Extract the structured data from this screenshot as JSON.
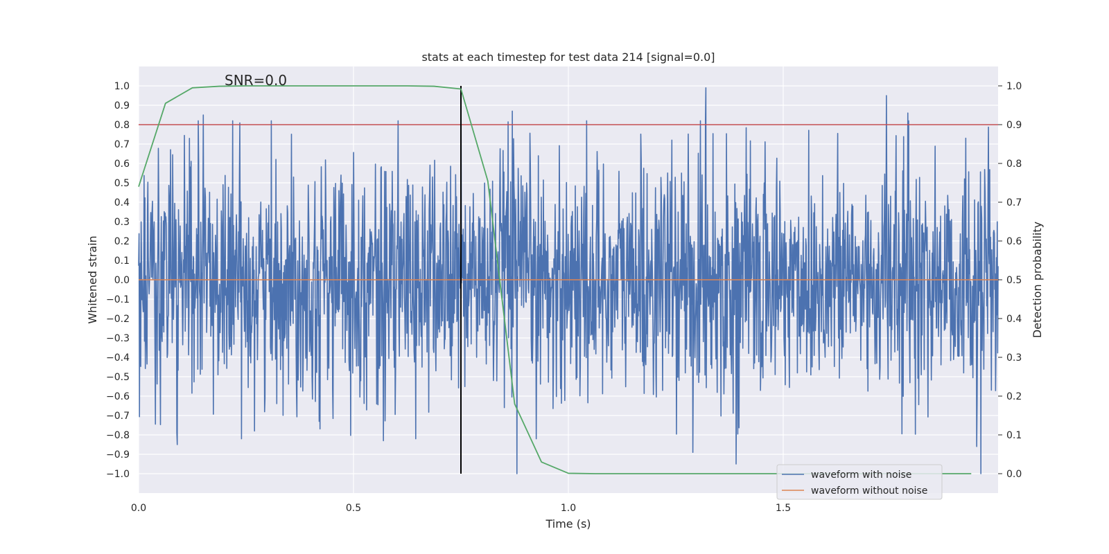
{
  "chart_data": {
    "type": "line",
    "title": "stats at each timestep for test data 214 [signal=0.0]",
    "xlabel": "Time (s)",
    "ylabel": "Whitened strain",
    "y2label": "Detection probability",
    "annotation": "SNR=0.0",
    "xlim": [
      0.0,
      2.0
    ],
    "ylim": [
      -1.1,
      1.1
    ],
    "y2lim": [
      -0.05,
      1.05
    ],
    "x_ticks": [
      "0.0",
      "0.5",
      "1.0",
      "1.5"
    ],
    "x_tick_values": [
      0.0,
      0.5,
      1.0,
      1.5
    ],
    "y_ticks": [
      "1.0",
      "0.9",
      "0.8",
      "0.7",
      "0.6",
      "0.5",
      "0.4",
      "0.3",
      "0.2",
      "0.1",
      "0.0",
      "−0.1",
      "−0.2",
      "−0.3",
      "−0.4",
      "−0.5",
      "−0.6",
      "−0.7",
      "−0.8",
      "−0.9",
      "−1.0"
    ],
    "y_tick_values": [
      1.0,
      0.9,
      0.8,
      0.7,
      0.6,
      0.5,
      0.4,
      0.3,
      0.2,
      0.1,
      0.0,
      -0.1,
      -0.2,
      -0.3,
      -0.4,
      -0.5,
      -0.6,
      -0.7,
      -0.8,
      -0.9,
      -1.0
    ],
    "y2_ticks": [
      "1.0",
      "0.9",
      "0.8",
      "0.7",
      "0.6",
      "0.5",
      "0.4",
      "0.3",
      "0.2",
      "0.1",
      "0.0"
    ],
    "y2_tick_values": [
      1.0,
      0.9,
      0.8,
      0.7,
      0.6,
      0.5,
      0.4,
      0.3,
      0.2,
      0.1,
      0.0
    ],
    "grid": true,
    "legend_position": "bottom-right",
    "series": [
      {
        "name": "waveform with noise",
        "color": "#4c72b0",
        "axis": "left",
        "x_range": [
          0.0,
          2.0
        ],
        "n_points": 2048,
        "amplitude": 0.3,
        "extremes": [
          {
            "x": 0.09,
            "y": 0.82
          },
          {
            "x": 0.15,
            "y": 0.85
          },
          {
            "x": 0.75,
            "y": 0.83
          },
          {
            "x": 0.87,
            "y": 0.87
          },
          {
            "x": 1.32,
            "y": 0.99
          },
          {
            "x": 1.74,
            "y": 0.95
          },
          {
            "x": 1.79,
            "y": 0.86
          },
          {
            "x": 0.09,
            "y": -0.85
          },
          {
            "x": 0.88,
            "y": -1.0
          },
          {
            "x": 1.39,
            "y": -0.95
          },
          {
            "x": 1.29,
            "y": -0.89
          },
          {
            "x": 1.96,
            "y": -1.0
          },
          {
            "x": 1.95,
            "y": -0.86
          },
          {
            "x": 0.57,
            "y": -0.83
          }
        ]
      },
      {
        "name": "waveform without noise",
        "color": "#dd8452",
        "axis": "left",
        "x": [
          0.0,
          2.0
        ],
        "y": [
          0.0,
          0.0
        ]
      },
      {
        "name": "",
        "color": "#55a868",
        "axis": "right",
        "x": [
          0.0,
          0.0625,
          0.125,
          0.1875,
          0.25,
          0.3125,
          0.375,
          0.4375,
          0.5,
          0.5625,
          0.625,
          0.6875,
          0.75,
          0.8125,
          0.875,
          0.9375,
          1.0,
          1.0625,
          1.125,
          1.1875,
          1.25,
          1.3125,
          1.375,
          1.4375,
          1.5,
          1.5625,
          1.625,
          1.6875,
          1.75,
          1.8125,
          1.875,
          1.9375
        ],
        "y": [
          0.74,
          0.955,
          0.995,
          0.999,
          1.0,
          1.0,
          1.0,
          1.0,
          1.0,
          1.0,
          1.0,
          0.999,
          0.992,
          0.755,
          0.18,
          0.03,
          0.001,
          0.0,
          0.0,
          0.0,
          0.0,
          0.0,
          0.0,
          0.0,
          0.0,
          0.0,
          0.0,
          0.0,
          0.0,
          0.0,
          0.0,
          0.0
        ]
      }
    ],
    "reference_lines": [
      {
        "orientation": "horizontal",
        "axis": "right",
        "value": 0.9,
        "color": "#c44e52"
      },
      {
        "orientation": "vertical",
        "axis": "left",
        "value": 0.75,
        "y_from": -1.0,
        "y_to": 1.0,
        "color": "#000000"
      }
    ]
  }
}
